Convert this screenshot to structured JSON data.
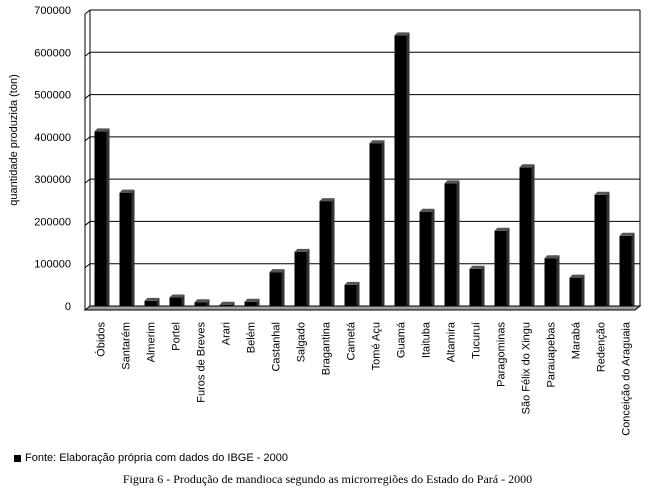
{
  "chart_data": {
    "type": "bar",
    "ylabel": "quantidade produzida (ton)",
    "xlabel": "",
    "ylim": [
      0,
      700000
    ],
    "yticks": [
      "0",
      "100000",
      "200000",
      "300000",
      "400000",
      "500000",
      "600000",
      "700000"
    ],
    "grid": true,
    "categories": [
      "Óbidos",
      "Santarém",
      "Almerim",
      "Portel",
      "Furos de Breves",
      "Arari",
      "Belém",
      "Castanhal",
      "Salgado",
      "Bragantina",
      "Cametá",
      "Tomé Açu",
      "Guamá",
      "Itaituba",
      "Altamira",
      "Tucuruí",
      "Paragominas",
      "São Félix do Xingu",
      "Parauapebas",
      "Marabá",
      "Redenção",
      "Conceição do Araguaia"
    ],
    "series": [
      {
        "values": [
          413000,
          268000,
          12000,
          20000,
          9000,
          3000,
          10000,
          80000,
          128000,
          248000,
          50000,
          385000,
          640000,
          223000,
          290000,
          88000,
          178000,
          328000,
          113000,
          67000,
          263000,
          166000
        ]
      }
    ],
    "colors": {
      "bar": "#000000",
      "floor": "#a0a0a0",
      "grid": "#000000"
    }
  },
  "legend": {
    "text": "Fonte: Elaboração própria com dados do IBGE - 2000"
  },
  "caption": {
    "text": "Figura 6 - Produção de mandioca segundo as microrregiões do Estado do Pará - 2000"
  }
}
